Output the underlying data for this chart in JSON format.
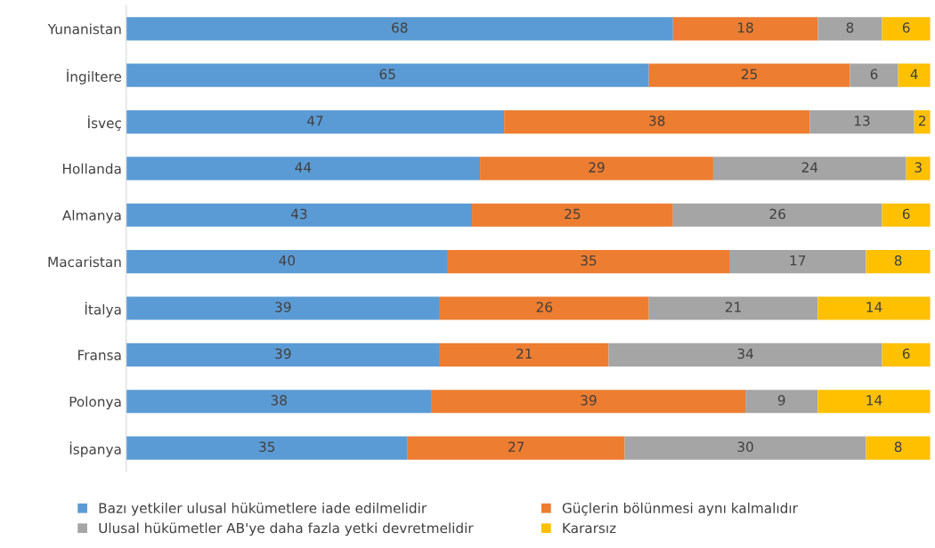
{
  "chart_data": {
    "type": "bar",
    "orientation": "horizontal",
    "stacked": true,
    "data_labels": true,
    "tick_labels": "y",
    "legend": "bottom",
    "categories": [
      "Yunanistan",
      "İngiltere",
      "İsveç",
      "Hollanda",
      "Almanya",
      "Macaristan",
      "İtalya",
      "Fransa",
      "Polonya",
      "İspanya"
    ],
    "series": [
      {
        "name": "Bazı yetkiler ulusal hükümetlere iade edilmelidir",
        "color": "#5b9bd5",
        "values": [
          68,
          65,
          47,
          44,
          43,
          40,
          39,
          39,
          38,
          35
        ]
      },
      {
        "name": "Güçlerin bölünmesi aynı kalmalıdır",
        "color": "#ed7d31",
        "values": [
          18,
          25,
          38,
          29,
          25,
          35,
          26,
          21,
          39,
          27
        ]
      },
      {
        "name": "Ulusal hükümetler AB'ye daha fazla yetki devretmelidir",
        "color": "#a5a5a5",
        "values": [
          8,
          6,
          13,
          24,
          26,
          17,
          21,
          34,
          9,
          30
        ]
      },
      {
        "name": "Kararsız",
        "color": "#ffc000",
        "values": [
          6,
          4,
          2,
          3,
          6,
          8,
          14,
          6,
          14,
          8
        ]
      }
    ]
  }
}
